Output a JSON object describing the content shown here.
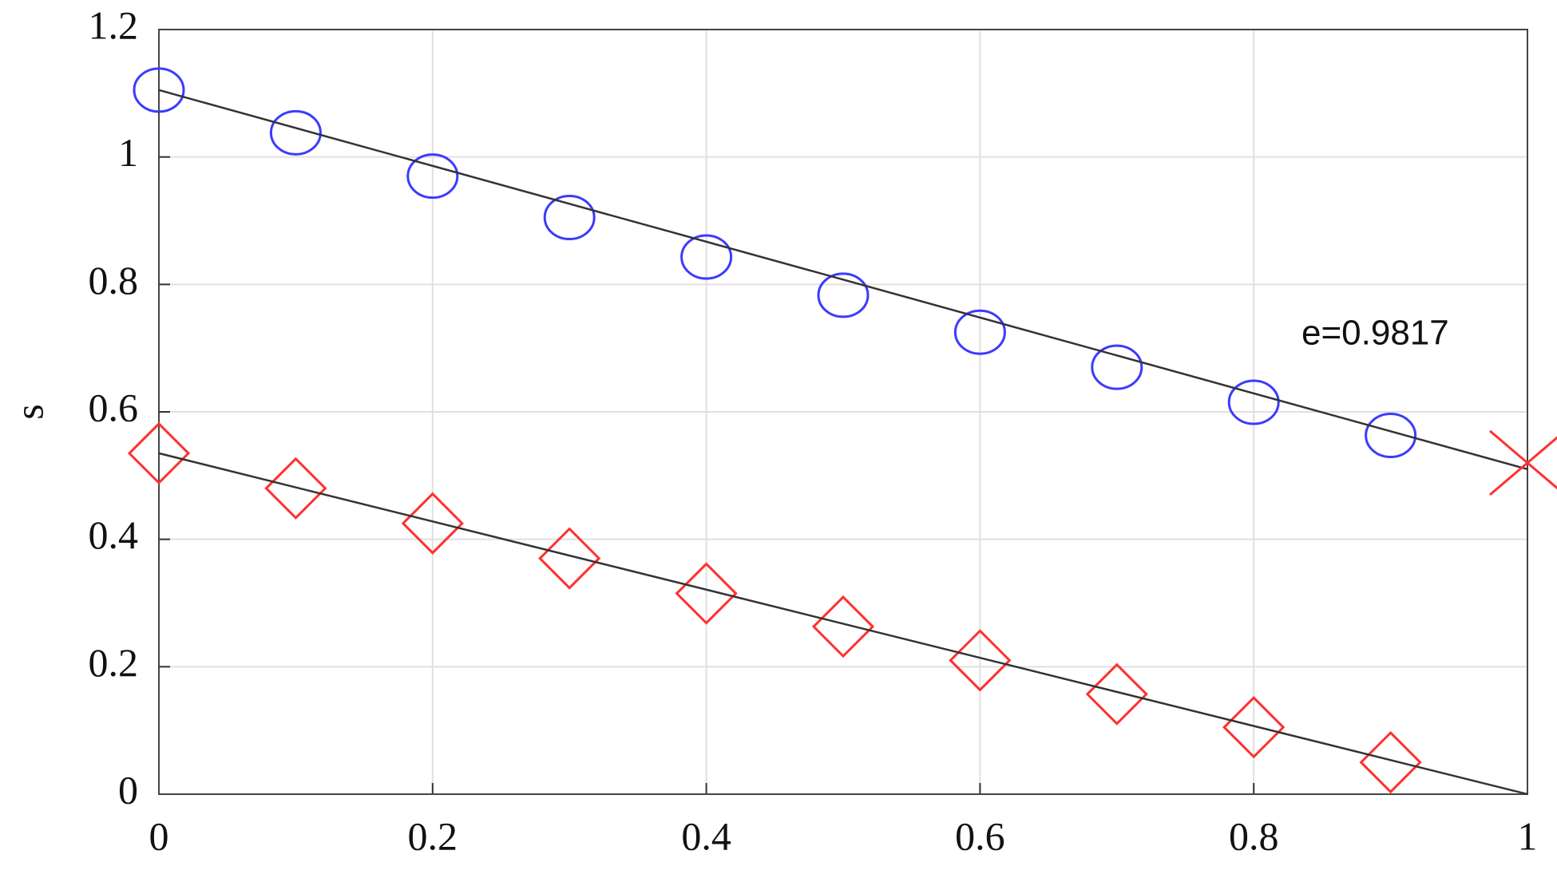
{
  "chart_data": {
    "type": "scatter",
    "ylabel": "s",
    "annotation": "e=0.9817",
    "xlim": [
      0,
      1
    ],
    "xticks": [
      0,
      0.2,
      0.4,
      0.6,
      0.8,
      1
    ],
    "ylim": [
      0,
      1.2
    ],
    "yticks": [
      0,
      0.2,
      0.4,
      0.6,
      0.8,
      1,
      1.2
    ],
    "grid": true,
    "series": [
      {
        "marker": "circle",
        "color": "#3b3bff",
        "x": [
          0,
          0.1,
          0.2,
          0.3,
          0.4,
          0.5,
          0.6,
          0.7,
          0.8,
          0.9
        ],
        "values": [
          1.105,
          1.038,
          0.97,
          0.905,
          0.843,
          0.783,
          0.725,
          0.67,
          0.615,
          0.563
        ]
      },
      {
        "marker": "line",
        "color": "#333333",
        "x": [
          0,
          1
        ],
        "values": [
          1.105,
          0.51
        ]
      },
      {
        "marker": "diamond",
        "color": "#ff3030",
        "x": [
          0,
          0.1,
          0.2,
          0.3,
          0.4,
          0.5,
          0.6,
          0.7,
          0.8,
          0.9
        ],
        "values": [
          0.535,
          0.48,
          0.425,
          0.37,
          0.315,
          0.263,
          0.21,
          0.157,
          0.105,
          0.05
        ]
      },
      {
        "marker": "line",
        "color": "#333333",
        "x": [
          0,
          1
        ],
        "values": [
          0.535,
          0
        ]
      },
      {
        "marker": "cross",
        "color": "#ff3030",
        "x": [
          1
        ],
        "values": [
          0.52
        ]
      }
    ]
  }
}
